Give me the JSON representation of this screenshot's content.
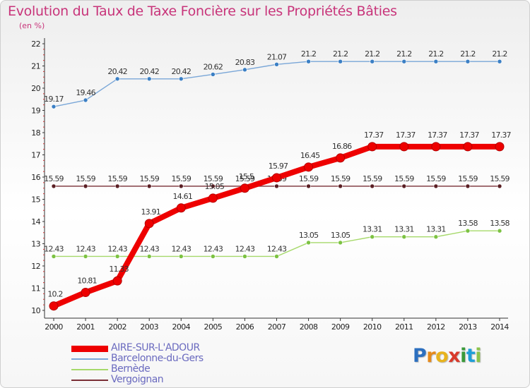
{
  "title": "Evolution du Taux de Taxe Foncière sur les Propriétés Bâties",
  "unit_label": "(en %)",
  "colors": {
    "title": "#c8347a",
    "axis": "#333333",
    "tick_marks": "#cc3333",
    "legend_text": "#6a6abf"
  },
  "chart_data": {
    "type": "line",
    "title": "Evolution du Taux de Taxe Foncière sur les Propriétés Bâties",
    "ylabel": "(en %)",
    "xlabel": "",
    "ylim": [
      10,
      22
    ],
    "yticks": [
      "10",
      "11",
      "12",
      "13",
      "14",
      "15",
      "16",
      "17",
      "18",
      "19",
      "20",
      "21",
      "22"
    ],
    "categories": [
      "2000",
      "2001",
      "2002",
      "2003",
      "2004",
      "2005",
      "2006",
      "2007",
      "2008",
      "2009",
      "2010",
      "2011",
      "2012",
      "2013",
      "2014"
    ],
    "grid": false,
    "legend_position": "bottom-left",
    "series": [
      {
        "name": "AIRE-SUR-L'ADOUR",
        "color": "#ee0000",
        "point_color": "#ee0000",
        "width": "thick",
        "values": [
          10.2,
          10.81,
          11.33,
          13.91,
          14.61,
          15.05,
          15.5,
          15.97,
          16.45,
          16.86,
          17.37,
          17.37,
          17.37,
          17.37,
          17.37
        ],
        "labels": [
          "10.2",
          "10.81",
          "11.33",
          "13.91",
          "14.61",
          "15.05",
          "15.5",
          "15.97",
          "16.45",
          "16.86",
          "17.37",
          "17.37",
          "17.37",
          "17.37",
          "17.37"
        ]
      },
      {
        "name": "Barcelonne-du-Gers",
        "color": "#7aa7d8",
        "point_color": "#3b7fc4",
        "width": "thin",
        "values": [
          19.17,
          19.46,
          20.42,
          20.42,
          20.42,
          20.62,
          20.83,
          21.07,
          21.2,
          21.2,
          21.2,
          21.2,
          21.2,
          21.2,
          21.2
        ],
        "labels": [
          "19.17",
          "19.46",
          "20.42",
          "20.42",
          "20.42",
          "20.62",
          "20.83",
          "21.07",
          "21.2",
          "21.2",
          "21.2",
          "21.2",
          "21.2",
          "21.2",
          "21.2"
        ]
      },
      {
        "name": "Bernède",
        "color": "#a6d96a",
        "point_color": "#7cc242",
        "width": "thin",
        "values": [
          12.43,
          12.43,
          12.43,
          12.43,
          12.43,
          12.43,
          12.43,
          12.43,
          13.05,
          13.05,
          13.31,
          13.31,
          13.31,
          13.58,
          13.58
        ],
        "labels": [
          "12.43",
          "12.43",
          "12.43",
          "12.43",
          "12.43",
          "12.43",
          "12.43",
          "12.43",
          "13.05",
          "13.05",
          "13.31",
          "13.31",
          "13.31",
          "13.58",
          "13.58"
        ]
      },
      {
        "name": "Vergoignan",
        "color": "#7a2e35",
        "point_color": "#5a1f24",
        "width": "thin",
        "values": [
          15.59,
          15.59,
          15.59,
          15.59,
          15.59,
          15.59,
          15.59,
          15.59,
          15.59,
          15.59,
          15.59,
          15.59,
          15.59,
          15.59,
          15.59
        ],
        "labels": [
          "15.59",
          "15.59",
          "15.59",
          "15.59",
          "15.59",
          "15.59",
          "15.59",
          "15.59",
          "15.59",
          "15.59",
          "15.59",
          "15.59",
          "15.59",
          "15.59",
          "15.59"
        ]
      }
    ]
  },
  "logo": {
    "letters": [
      "P",
      "r",
      "o",
      "x",
      "i",
      "t",
      "i"
    ],
    "colors": [
      "#2c6fbf",
      "#e58a1b",
      "#e8b31d",
      "#d93a2b",
      "#3a9a3a",
      "#1f9fd8",
      "#8bc34a"
    ]
  }
}
